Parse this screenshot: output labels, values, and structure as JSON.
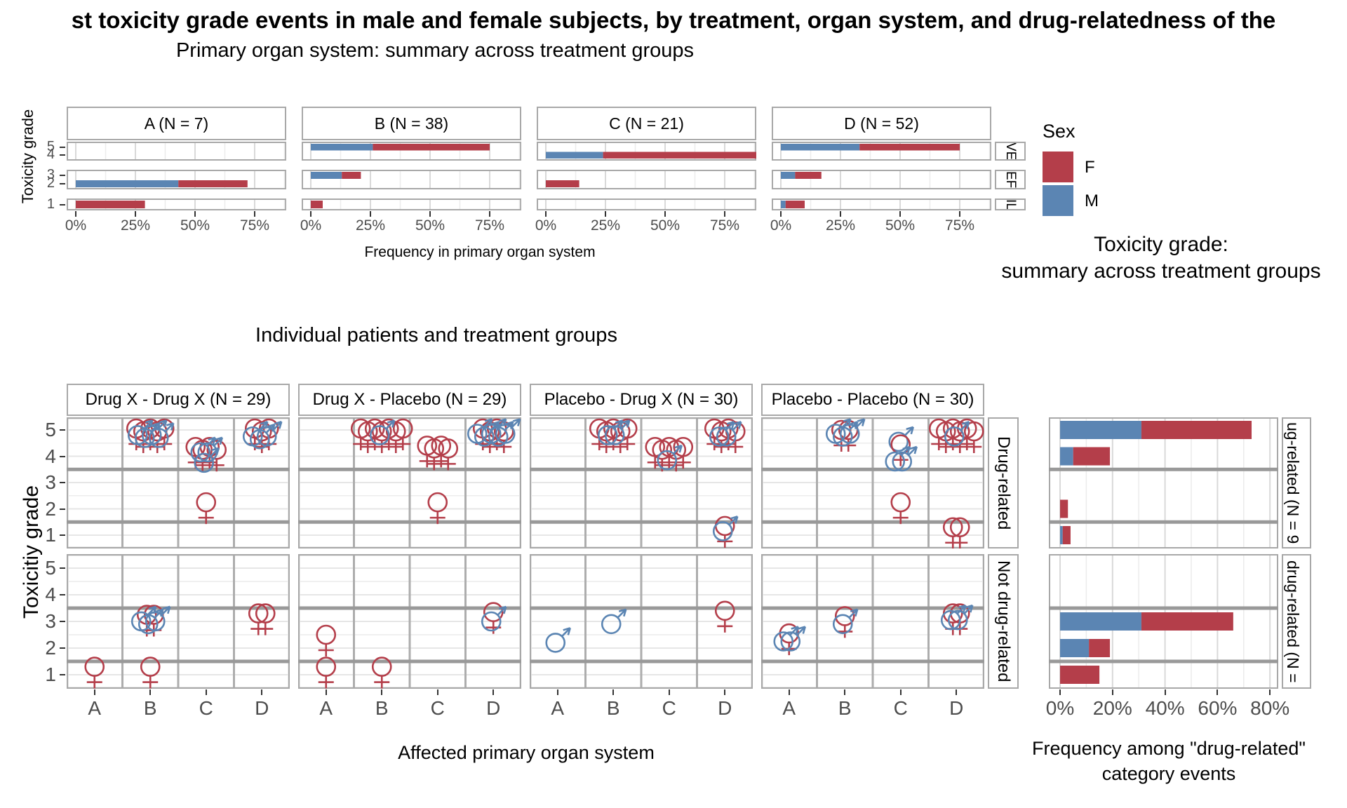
{
  "title": "st toxicity grade events in male and female subjects, by treatment, organ system, and drug-relatedness of the",
  "colors": {
    "female": "#b43e4a",
    "male": "#5b85b3",
    "grid_major": "#d9d9d9",
    "grid_minor": "#ececec",
    "panel_border": "#a8a8a8",
    "severity_line": "#999999",
    "tick_text": "#4d4d4d"
  },
  "legend": {
    "title": "Sex",
    "items": [
      {
        "label": "F",
        "color": "#b43e4a"
      },
      {
        "label": "M",
        "color": "#5b85b3"
      }
    ]
  },
  "chart_data": [
    {
      "type": "bar",
      "title": "Primary organ system: summary across treatment groups",
      "ylabel": "Toxicity grade",
      "xlabel": "Frequency in primary organ system",
      "x_ticks": [
        "0%",
        "25%",
        "50%",
        "75%"
      ],
      "x_tick_values": [
        0,
        25,
        50,
        75
      ],
      "xlim": [
        0,
        90
      ],
      "legend_series": [
        "M",
        "F"
      ],
      "grade_strips": [
        [
          5,
          4
        ],
        [
          3,
          2
        ],
        [
          1
        ]
      ],
      "strip_labels_right": [
        "VE",
        "EF",
        "IL"
      ],
      "panels": [
        {
          "label": "A (N = 7)",
          "bars": [
            {
              "grade": 2,
              "m": 43,
              "f": 29
            },
            {
              "grade": 1,
              "m": 0,
              "f": 29
            }
          ]
        },
        {
          "label": "B (N = 38)",
          "bars": [
            {
              "grade": 5,
              "m": 26,
              "f": 49
            },
            {
              "grade": 3,
              "m": 13,
              "f": 8
            },
            {
              "grade": 1,
              "m": 0,
              "f": 5
            }
          ]
        },
        {
          "label": "C (N = 21)",
          "bars": [
            {
              "grade": 4,
              "m": 24,
              "f": 66
            },
            {
              "grade": 2,
              "m": 0,
              "f": 14
            }
          ]
        },
        {
          "label": "D (N = 52)",
          "bars": [
            {
              "grade": 5,
              "m": 33,
              "f": 42
            },
            {
              "grade": 3,
              "m": 6,
              "f": 11
            },
            {
              "grade": 1,
              "m": 2,
              "f": 8
            }
          ]
        }
      ]
    },
    {
      "type": "scatter",
      "title": "Individual patients and treatment groups",
      "ylabel": "Toxicitiy grade",
      "xlabel": "Affected primary organ system",
      "x_categories": [
        "A",
        "B",
        "C",
        "D"
      ],
      "y_ticks": [
        5,
        4,
        3,
        2,
        1
      ],
      "row_labels": [
        "Drug-related",
        "Not drug-related"
      ],
      "severity_dividers": [
        3.5,
        1.5
      ],
      "panels": [
        {
          "label": "Drug X - Drug X (N = 29)",
          "rows": [
            {
              "points": [
                {
                  "x": "B",
                  "grade": 5.0,
                  "sex": "F",
                  "n": 5
                },
                {
                  "x": "B",
                  "grade": 4.75,
                  "sex": "M",
                  "n": 4
                },
                {
                  "x": "C",
                  "grade": 4.3,
                  "sex": "F",
                  "n": 4
                },
                {
                  "x": "C",
                  "grade": 4.15,
                  "sex": "M",
                  "n": 2
                },
                {
                  "x": "C",
                  "grade": 3.75,
                  "sex": "M",
                  "n": 1
                },
                {
                  "x": "C",
                  "grade": 2.25,
                  "sex": "F",
                  "n": 1
                },
                {
                  "x": "D",
                  "grade": 5.0,
                  "sex": "F",
                  "n": 3
                },
                {
                  "x": "D",
                  "grade": 4.7,
                  "sex": "M",
                  "n": 3
                }
              ]
            },
            {
              "points": [
                {
                  "x": "A",
                  "grade": 1.3,
                  "sex": "F",
                  "n": 1
                },
                {
                  "x": "B",
                  "grade": 3.25,
                  "sex": "F",
                  "n": 2
                },
                {
                  "x": "B",
                  "grade": 2.95,
                  "sex": "M",
                  "n": 3
                },
                {
                  "x": "B",
                  "grade": 1.3,
                  "sex": "F",
                  "n": 1
                },
                {
                  "x": "D",
                  "grade": 3.3,
                  "sex": "F",
                  "n": 2
                }
              ]
            }
          ]
        },
        {
          "label": "Drug X - Placebo (N = 29)",
          "rows": [
            {
              "points": [
                {
                  "x": "B",
                  "grade": 5.0,
                  "sex": "F",
                  "n": 7
                },
                {
                  "x": "B",
                  "grade": 4.8,
                  "sex": "M",
                  "n": 1
                },
                {
                  "x": "C",
                  "grade": 4.35,
                  "sex": "F",
                  "n": 4
                },
                {
                  "x": "C",
                  "grade": 2.25,
                  "sex": "F",
                  "n": 1
                },
                {
                  "x": "D",
                  "grade": 5.0,
                  "sex": "F",
                  "n": 4
                },
                {
                  "x": "D",
                  "grade": 4.8,
                  "sex": "M",
                  "n": 5
                }
              ]
            },
            {
              "points": [
                {
                  "x": "A",
                  "grade": 2.5,
                  "sex": "F",
                  "n": 1
                },
                {
                  "x": "A",
                  "grade": 1.3,
                  "sex": "F",
                  "n": 1
                },
                {
                  "x": "B",
                  "grade": 1.3,
                  "sex": "F",
                  "n": 1
                },
                {
                  "x": "D",
                  "grade": 3.35,
                  "sex": "F",
                  "n": 1
                },
                {
                  "x": "D",
                  "grade": 3.0,
                  "sex": "M",
                  "n": 1
                }
              ]
            }
          ]
        },
        {
          "label": "Placebo - Drug X (N = 30)",
          "rows": [
            {
              "points": [
                {
                  "x": "B",
                  "grade": 5.0,
                  "sex": "F",
                  "n": 5
                },
                {
                  "x": "B",
                  "grade": 4.8,
                  "sex": "M",
                  "n": 2
                },
                {
                  "x": "C",
                  "grade": 4.3,
                  "sex": "F",
                  "n": 5
                },
                {
                  "x": "C",
                  "grade": 3.85,
                  "sex": "M",
                  "n": 1
                },
                {
                  "x": "D",
                  "grade": 5.0,
                  "sex": "F",
                  "n": 4
                },
                {
                  "x": "D",
                  "grade": 4.75,
                  "sex": "M",
                  "n": 2
                },
                {
                  "x": "D",
                  "grade": 1.35,
                  "sex": "F",
                  "n": 1
                },
                {
                  "x": "D",
                  "grade": 1.15,
                  "sex": "M",
                  "n": 1
                }
              ]
            },
            {
              "points": [
                {
                  "x": "A",
                  "grade": 2.2,
                  "sex": "M",
                  "n": 1
                },
                {
                  "x": "B",
                  "grade": 2.9,
                  "sex": "M",
                  "n": 1
                },
                {
                  "x": "D",
                  "grade": 3.4,
                  "sex": "F",
                  "n": 1
                }
              ]
            }
          ]
        },
        {
          "label": "Placebo - Placebo (N = 30)",
          "rows": [
            {
              "points": [
                {
                  "x": "B",
                  "grade": 5.0,
                  "sex": "F",
                  "n": 2
                },
                {
                  "x": "B",
                  "grade": 4.8,
                  "sex": "M",
                  "n": 3
                },
                {
                  "x": "C",
                  "grade": 4.55,
                  "sex": "M",
                  "n": 1
                },
                {
                  "x": "C",
                  "grade": 4.45,
                  "sex": "F",
                  "n": 1
                },
                {
                  "x": "C",
                  "grade": 3.8,
                  "sex": "M",
                  "n": 2
                },
                {
                  "x": "C",
                  "grade": 2.25,
                  "sex": "F",
                  "n": 1
                },
                {
                  "x": "D",
                  "grade": 5.0,
                  "sex": "F",
                  "n": 6
                },
                {
                  "x": "D",
                  "grade": 4.75,
                  "sex": "M",
                  "n": 1
                },
                {
                  "x": "D",
                  "grade": 1.3,
                  "sex": "F",
                  "n": 2
                }
              ]
            },
            {
              "points": [
                {
                  "x": "A",
                  "grade": 2.55,
                  "sex": "F",
                  "n": 1
                },
                {
                  "x": "A",
                  "grade": 2.25,
                  "sex": "M",
                  "n": 2
                },
                {
                  "x": "B",
                  "grade": 3.2,
                  "sex": "F",
                  "n": 1
                },
                {
                  "x": "B",
                  "grade": 2.9,
                  "sex": "M",
                  "n": 1
                },
                {
                  "x": "D",
                  "grade": 3.3,
                  "sex": "F",
                  "n": 2
                },
                {
                  "x": "D",
                  "grade": 3.05,
                  "sex": "M",
                  "n": 2
                }
              ]
            }
          ]
        }
      ]
    },
    {
      "type": "bar",
      "title_line1": "Toxicity grade:",
      "title_line2": "summary across treatment groups",
      "xlabel_line1": "Frequency among \"drug-related\"",
      "xlabel_line2": "category events",
      "x_ticks": [
        "0%",
        "20%",
        "40%",
        "60%",
        "80%"
      ],
      "x_tick_values": [
        0,
        20,
        40,
        60,
        80
      ],
      "xlim": [
        0,
        85
      ],
      "y_ticks": [
        5,
        4,
        3,
        2,
        1
      ],
      "severity_dividers": [
        3.5,
        1.5
      ],
      "strip_labels_right": [
        "ug-related (N = 9",
        "drug-related (N ="
      ],
      "rows": [
        {
          "bars": [
            {
              "grade": 5,
              "m": 31,
              "f": 42
            },
            {
              "grade": 4,
              "m": 5,
              "f": 14
            },
            {
              "grade": 2,
              "m": 0,
              "f": 3
            },
            {
              "grade": 1,
              "m": 1,
              "f": 3
            }
          ]
        },
        {
          "bars": [
            {
              "grade": 3,
              "m": 31,
              "f": 35
            },
            {
              "grade": 2,
              "m": 11,
              "f": 8
            },
            {
              "grade": 1,
              "m": 0,
              "f": 15
            }
          ]
        }
      ]
    }
  ]
}
